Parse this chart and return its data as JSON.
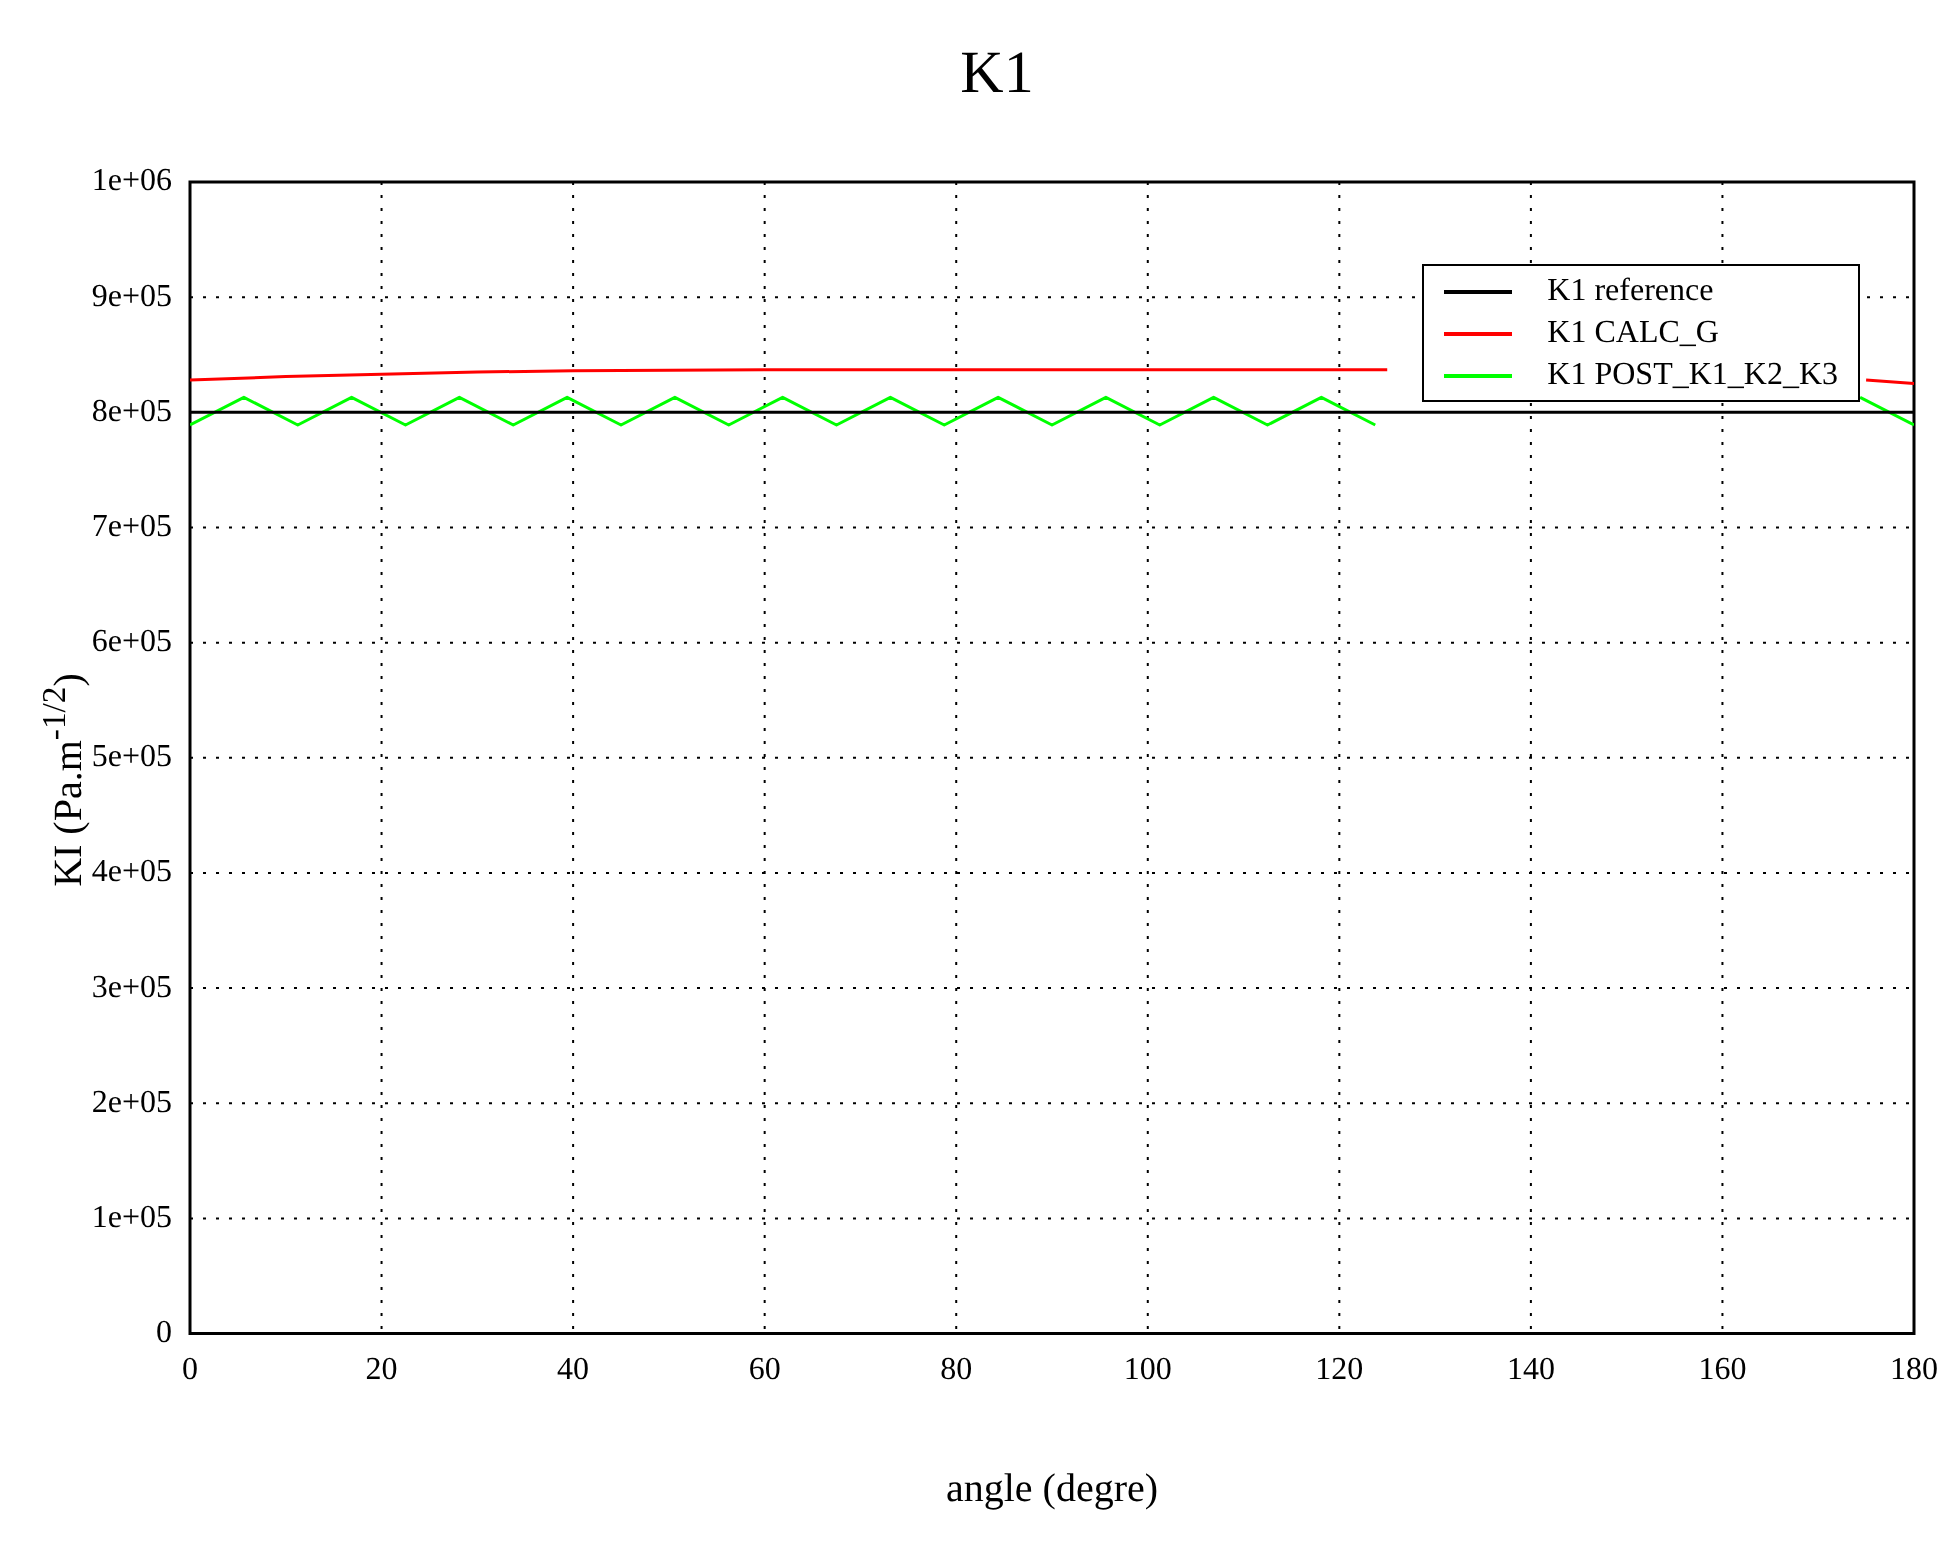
{
  "chart_data": {
    "type": "line",
    "title": "K1",
    "xlabel": "angle (degre)",
    "ylabel": "KI (Pa.m$^{-1/2}$)",
    "xlim": [
      0,
      180
    ],
    "xticks": [
      0,
      20,
      40,
      60,
      80,
      100,
      120,
      140,
      160,
      180
    ],
    "ylim": [
      0,
      1000000
    ],
    "yticks": [
      {
        "value": 0,
        "label": "0"
      },
      {
        "value": 100000,
        "label": "1e+05"
      },
      {
        "value": 200000,
        "label": "2e+05"
      },
      {
        "value": 300000,
        "label": "3e+05"
      },
      {
        "value": 400000,
        "label": "4e+05"
      },
      {
        "value": 500000,
        "label": "5e+05"
      },
      {
        "value": 600000,
        "label": "6e+05"
      },
      {
        "value": 700000,
        "label": "7e+05"
      },
      {
        "value": 800000,
        "label": "8e+05"
      },
      {
        "value": 900000,
        "label": "9e+05"
      },
      {
        "value": 1000000,
        "label": "1e+06"
      }
    ],
    "grid": true,
    "legend": "top right",
    "marker": "none",
    "line_style": "solid",
    "series": [
      {
        "name": "K1 reference",
        "color": "#000000",
        "x": [
          0,
          180
        ],
        "values": [
          800000,
          800000
        ]
      },
      {
        "name": "K1 CALC_G",
        "color": "#ff0000",
        "x": [
          0,
          10,
          20,
          30,
          40,
          60,
          90,
          120,
          125,
          140,
          150,
          160,
          170,
          175,
          180
        ],
        "values": [
          828000,
          831000,
          833000,
          835000,
          836000,
          837000,
          837000,
          837000,
          837000,
          null,
          null,
          null,
          null,
          828000,
          825000
        ]
      },
      {
        "name": "K1 POST_K1_K2_K3",
        "color": "#00ff00",
        "x": [
          0,
          5.625,
          11.25,
          16.875,
          22.5,
          28.125,
          33.75,
          39.375,
          45,
          50.625,
          56.25,
          61.875,
          67.5,
          73.125,
          78.75,
          84.375,
          90,
          95.625,
          101.25,
          106.875,
          112.5,
          118.125,
          123.75,
          129.375,
          135,
          140.625,
          146.25,
          151.875,
          157.5,
          163.125,
          168.75,
          174.375,
          180
        ],
        "values": [
          789000,
          813000,
          789000,
          813000,
          789000,
          813000,
          789000,
          813000,
          789000,
          813000,
          789000,
          813000,
          789000,
          813000,
          789000,
          813000,
          789000,
          813000,
          789000,
          813000,
          789000,
          813000,
          789000,
          null,
          null,
          null,
          null,
          null,
          null,
          null,
          null,
          813000,
          789000
        ]
      }
    ]
  }
}
